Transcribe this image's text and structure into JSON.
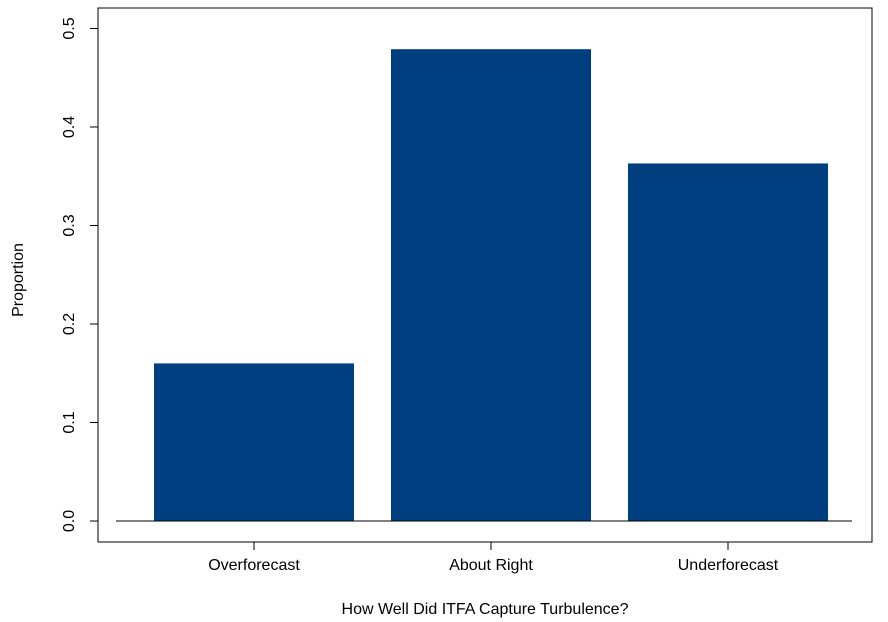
{
  "chart_data": {
    "type": "bar",
    "title": "",
    "xlabel": "How Well Did ITFA Capture Turbulence?",
    "ylabel": "Proportion",
    "categories": [
      "Overforecast",
      "About Right",
      "Underforecast"
    ],
    "values": [
      0.16,
      0.479,
      0.363
    ],
    "ylim": [
      0,
      0.52
    ],
    "yticks": [
      "0.0",
      "0.1",
      "0.2",
      "0.3",
      "0.4",
      "0.5"
    ],
    "bar_color": "#003f7f",
    "grid": false,
    "legend": "none"
  }
}
